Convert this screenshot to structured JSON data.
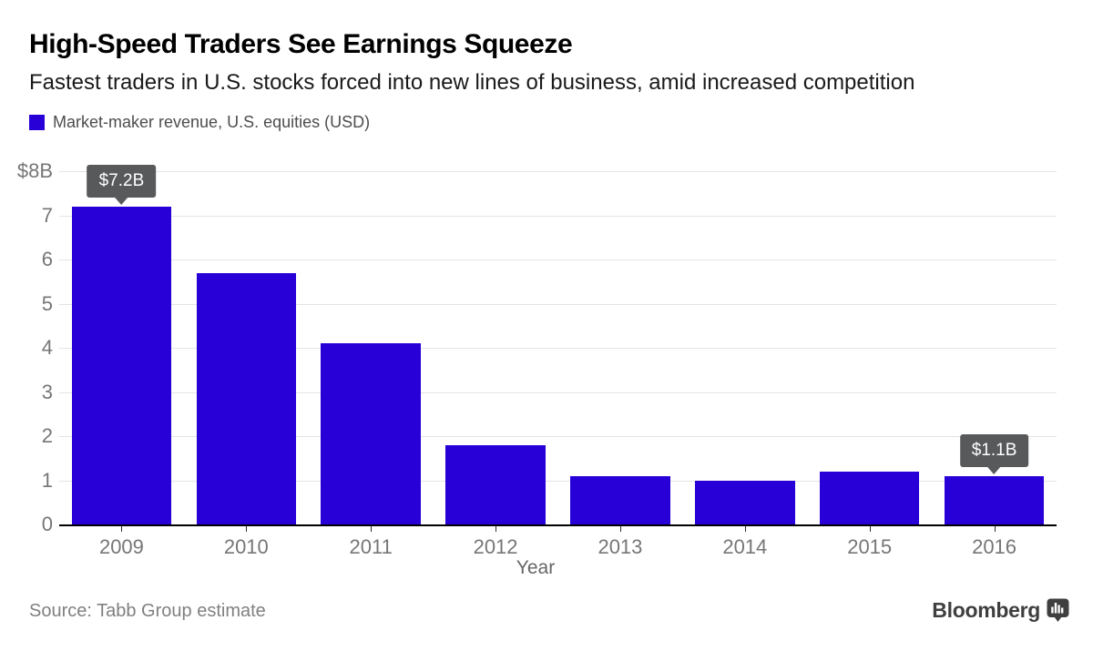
{
  "header": {
    "title": "High-Speed Traders See Earnings Squeeze",
    "subtitle": "Fastest traders in U.S. stocks forced into new lines of business, amid increased competition"
  },
  "legend": {
    "label": "Market-maker revenue, U.S. equities (USD)",
    "swatch_color": "#2800d7"
  },
  "chart_data": {
    "type": "bar",
    "title": "Market-maker revenue, U.S. equities (USD)",
    "categories": [
      "2009",
      "2010",
      "2011",
      "2012",
      "2013",
      "2014",
      "2015",
      "2016"
    ],
    "values": [
      7.2,
      5.7,
      4.1,
      1.8,
      1.1,
      1.0,
      1.2,
      1.1
    ],
    "xlabel": "Year",
    "ylabel": "",
    "ylim": [
      0,
      8
    ],
    "yticks": [
      {
        "value": 8,
        "label": "$8B"
      },
      {
        "value": 7,
        "label": "7"
      },
      {
        "value": 6,
        "label": "6"
      },
      {
        "value": 5,
        "label": "5"
      },
      {
        "value": 4,
        "label": "4"
      },
      {
        "value": 3,
        "label": "3"
      },
      {
        "value": 2,
        "label": "2"
      },
      {
        "value": 1,
        "label": "1"
      },
      {
        "value": 0,
        "label": "0"
      }
    ],
    "grid": true,
    "legend_position": "top-left",
    "bar_color": "#2800d7",
    "annotations": [
      {
        "category": "2009",
        "index": 0,
        "label": "$7.2B"
      },
      {
        "category": "2016",
        "index": 7,
        "label": "$1.1B"
      }
    ]
  },
  "footer": {
    "source": "Source: Tabb Group estimate",
    "brand": "Bloomberg"
  },
  "colors": {
    "bar": "#2800d7",
    "tooltip_bg": "#58595b",
    "tooltip_text": "#ffffff",
    "axis_text": "#767676",
    "gridline": "#e4e4e4",
    "axis_line": "#000000",
    "brand_gray": "#3f3f3f"
  }
}
